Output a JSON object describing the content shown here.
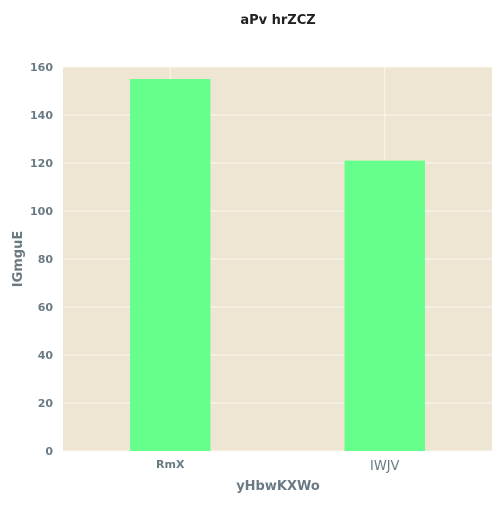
{
  "chart_data": {
    "type": "bar",
    "title": "aPv hrZCZ",
    "xlabel": "yHbwKXWo",
    "ylabel": "IGmguE",
    "categories": [
      "RmX",
      "IWJV"
    ],
    "values": [
      155,
      121
    ],
    "ylim": [
      0,
      160
    ],
    "yticks": [
      0,
      20,
      40,
      60,
      80,
      100,
      120,
      140,
      160
    ],
    "grid": true,
    "colors": {
      "bar": "#66ff8c",
      "plot_background": "#efe5d3",
      "grid": "#fbf8f1"
    }
  }
}
